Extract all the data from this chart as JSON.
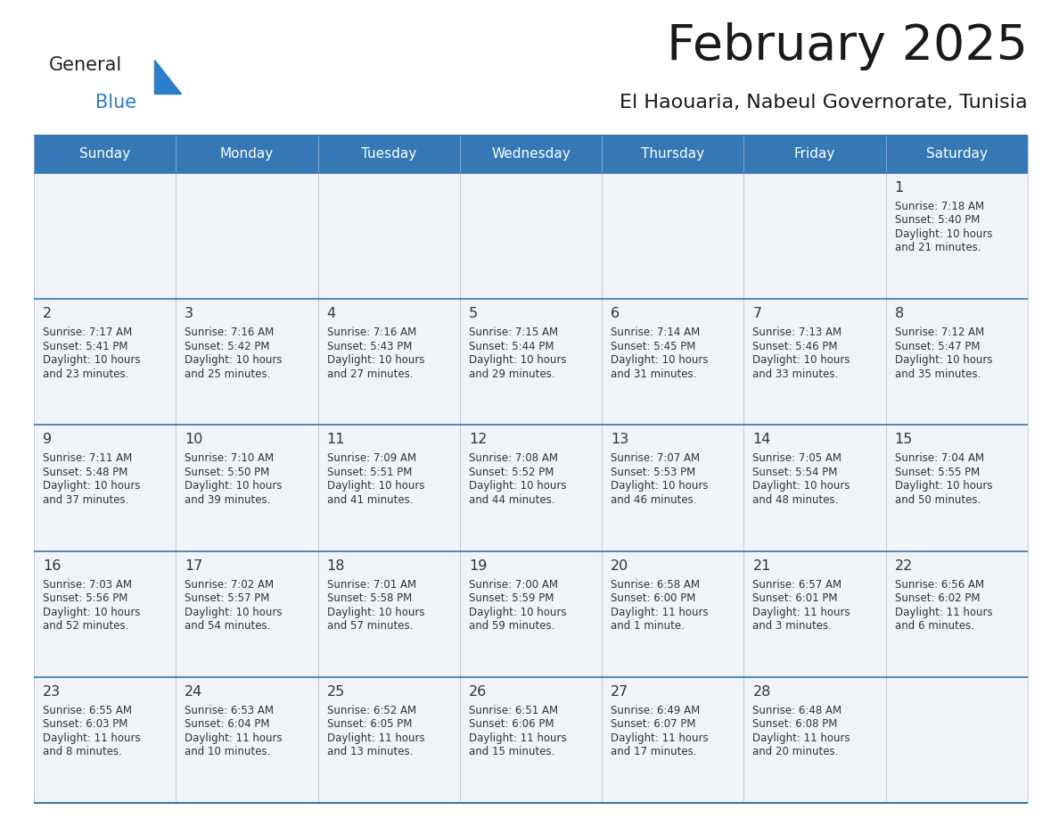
{
  "title": "February 2025",
  "subtitle": "El Haouaria, Nabeul Governorate, Tunisia",
  "header_bg_color": "#3578b5",
  "header_text_color": "#ffffff",
  "cell_bg_color": "#f0f4f8",
  "border_color": "#3578b5",
  "title_color": "#1a1a1a",
  "subtitle_color": "#1a1a1a",
  "day_number_color": "#333333",
  "info_text_color": "#333333",
  "days_of_week": [
    "Sunday",
    "Monday",
    "Tuesday",
    "Wednesday",
    "Thursday",
    "Friday",
    "Saturday"
  ],
  "calendar_data": [
    [
      null,
      null,
      null,
      null,
      null,
      null,
      {
        "day": 1,
        "sunrise": "7:18 AM",
        "sunset": "5:40 PM",
        "daylight_line1": "Daylight: 10 hours",
        "daylight_line2": "and 21 minutes."
      }
    ],
    [
      {
        "day": 2,
        "sunrise": "7:17 AM",
        "sunset": "5:41 PM",
        "daylight_line1": "Daylight: 10 hours",
        "daylight_line2": "and 23 minutes."
      },
      {
        "day": 3,
        "sunrise": "7:16 AM",
        "sunset": "5:42 PM",
        "daylight_line1": "Daylight: 10 hours",
        "daylight_line2": "and 25 minutes."
      },
      {
        "day": 4,
        "sunrise": "7:16 AM",
        "sunset": "5:43 PM",
        "daylight_line1": "Daylight: 10 hours",
        "daylight_line2": "and 27 minutes."
      },
      {
        "day": 5,
        "sunrise": "7:15 AM",
        "sunset": "5:44 PM",
        "daylight_line1": "Daylight: 10 hours",
        "daylight_line2": "and 29 minutes."
      },
      {
        "day": 6,
        "sunrise": "7:14 AM",
        "sunset": "5:45 PM",
        "daylight_line1": "Daylight: 10 hours",
        "daylight_line2": "and 31 minutes."
      },
      {
        "day": 7,
        "sunrise": "7:13 AM",
        "sunset": "5:46 PM",
        "daylight_line1": "Daylight: 10 hours",
        "daylight_line2": "and 33 minutes."
      },
      {
        "day": 8,
        "sunrise": "7:12 AM",
        "sunset": "5:47 PM",
        "daylight_line1": "Daylight: 10 hours",
        "daylight_line2": "and 35 minutes."
      }
    ],
    [
      {
        "day": 9,
        "sunrise": "7:11 AM",
        "sunset": "5:48 PM",
        "daylight_line1": "Daylight: 10 hours",
        "daylight_line2": "and 37 minutes."
      },
      {
        "day": 10,
        "sunrise": "7:10 AM",
        "sunset": "5:50 PM",
        "daylight_line1": "Daylight: 10 hours",
        "daylight_line2": "and 39 minutes."
      },
      {
        "day": 11,
        "sunrise": "7:09 AM",
        "sunset": "5:51 PM",
        "daylight_line1": "Daylight: 10 hours",
        "daylight_line2": "and 41 minutes."
      },
      {
        "day": 12,
        "sunrise": "7:08 AM",
        "sunset": "5:52 PM",
        "daylight_line1": "Daylight: 10 hours",
        "daylight_line2": "and 44 minutes."
      },
      {
        "day": 13,
        "sunrise": "7:07 AM",
        "sunset": "5:53 PM",
        "daylight_line1": "Daylight: 10 hours",
        "daylight_line2": "and 46 minutes."
      },
      {
        "day": 14,
        "sunrise": "7:05 AM",
        "sunset": "5:54 PM",
        "daylight_line1": "Daylight: 10 hours",
        "daylight_line2": "and 48 minutes."
      },
      {
        "day": 15,
        "sunrise": "7:04 AM",
        "sunset": "5:55 PM",
        "daylight_line1": "Daylight: 10 hours",
        "daylight_line2": "and 50 minutes."
      }
    ],
    [
      {
        "day": 16,
        "sunrise": "7:03 AM",
        "sunset": "5:56 PM",
        "daylight_line1": "Daylight: 10 hours",
        "daylight_line2": "and 52 minutes."
      },
      {
        "day": 17,
        "sunrise": "7:02 AM",
        "sunset": "5:57 PM",
        "daylight_line1": "Daylight: 10 hours",
        "daylight_line2": "and 54 minutes."
      },
      {
        "day": 18,
        "sunrise": "7:01 AM",
        "sunset": "5:58 PM",
        "daylight_line1": "Daylight: 10 hours",
        "daylight_line2": "and 57 minutes."
      },
      {
        "day": 19,
        "sunrise": "7:00 AM",
        "sunset": "5:59 PM",
        "daylight_line1": "Daylight: 10 hours",
        "daylight_line2": "and 59 minutes."
      },
      {
        "day": 20,
        "sunrise": "6:58 AM",
        "sunset": "6:00 PM",
        "daylight_line1": "Daylight: 11 hours",
        "daylight_line2": "and 1 minute."
      },
      {
        "day": 21,
        "sunrise": "6:57 AM",
        "sunset": "6:01 PM",
        "daylight_line1": "Daylight: 11 hours",
        "daylight_line2": "and 3 minutes."
      },
      {
        "day": 22,
        "sunrise": "6:56 AM",
        "sunset": "6:02 PM",
        "daylight_line1": "Daylight: 11 hours",
        "daylight_line2": "and 6 minutes."
      }
    ],
    [
      {
        "day": 23,
        "sunrise": "6:55 AM",
        "sunset": "6:03 PM",
        "daylight_line1": "Daylight: 11 hours",
        "daylight_line2": "and 8 minutes."
      },
      {
        "day": 24,
        "sunrise": "6:53 AM",
        "sunset": "6:04 PM",
        "daylight_line1": "Daylight: 11 hours",
        "daylight_line2": "and 10 minutes."
      },
      {
        "day": 25,
        "sunrise": "6:52 AM",
        "sunset": "6:05 PM",
        "daylight_line1": "Daylight: 11 hours",
        "daylight_line2": "and 13 minutes."
      },
      {
        "day": 26,
        "sunrise": "6:51 AM",
        "sunset": "6:06 PM",
        "daylight_line1": "Daylight: 11 hours",
        "daylight_line2": "and 15 minutes."
      },
      {
        "day": 27,
        "sunrise": "6:49 AM",
        "sunset": "6:07 PM",
        "daylight_line1": "Daylight: 11 hours",
        "daylight_line2": "and 17 minutes."
      },
      {
        "day": 28,
        "sunrise": "6:48 AM",
        "sunset": "6:08 PM",
        "daylight_line1": "Daylight: 11 hours",
        "daylight_line2": "and 20 minutes."
      },
      null
    ]
  ]
}
